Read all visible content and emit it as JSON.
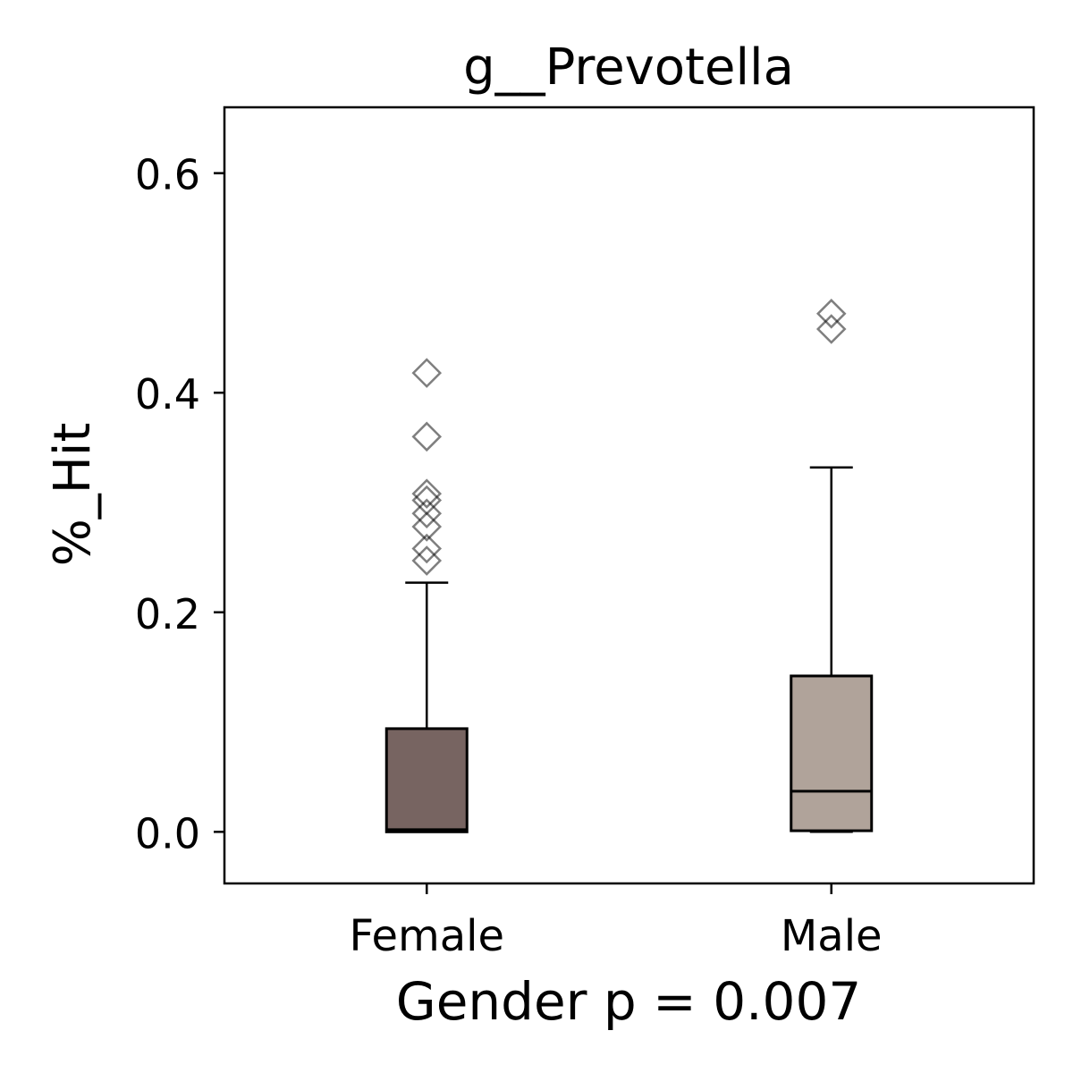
{
  "chart_data": {
    "type": "box",
    "title": "g__Prevotella",
    "xlabel": "Gender p = 0.007",
    "ylabel": "%_Hit",
    "categories": [
      "Female",
      "Male"
    ],
    "ylim": [
      -0.047,
      0.66
    ],
    "yticks": [
      0.0,
      0.2,
      0.4,
      0.6
    ],
    "ytick_labels": [
      "0.0",
      "0.2",
      "0.4",
      "0.6"
    ],
    "grid": false,
    "boxes": [
      {
        "name": "Female",
        "color": "#776461",
        "whisker_low": 0.0,
        "q1": 0.0,
        "median": 0.002,
        "q3": 0.094,
        "whisker_high": 0.227,
        "outliers": [
          0.418,
          0.36,
          0.308,
          0.302,
          0.29,
          0.278,
          0.258,
          0.247
        ]
      },
      {
        "name": "Male",
        "color": "#b0a39a",
        "whisker_low": 0.0,
        "q1": 0.001,
        "median": 0.037,
        "q3": 0.142,
        "whisker_high": 0.332,
        "outliers": [
          0.472,
          0.458
        ]
      }
    ]
  }
}
